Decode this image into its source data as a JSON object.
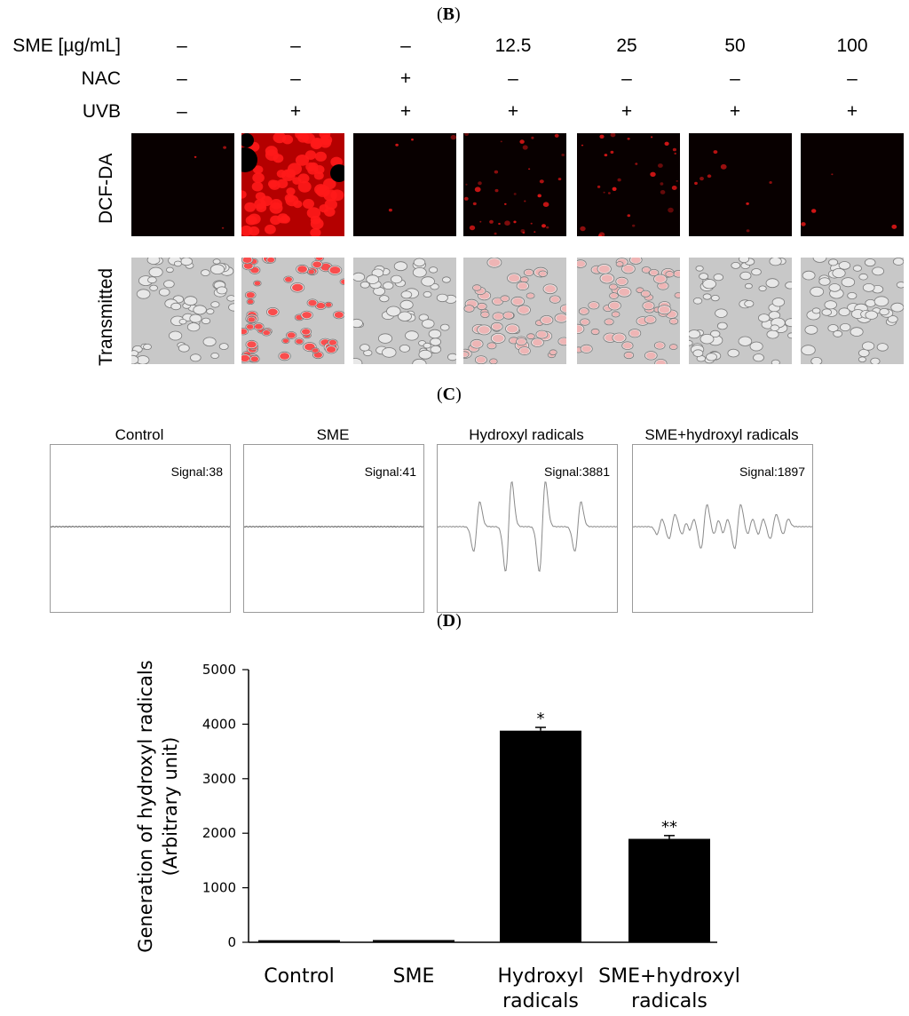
{
  "panel_b": {
    "label_open": "(",
    "label_letter": "B",
    "label_close": ")",
    "row_labels": {
      "sme": "SME [µg/mL]",
      "nac": "NAC",
      "uvb": "UVB"
    },
    "sme_values": [
      "–",
      "–",
      "–",
      "12.5",
      "25",
      "50",
      "100"
    ],
    "nac_values": [
      "–",
      "–",
      "+",
      "–",
      "–",
      "–",
      "–"
    ],
    "uvb_values": [
      "–",
      "+",
      "+",
      "+",
      "+",
      "+",
      "+"
    ],
    "image_rows": {
      "dcf": "DCF-DA",
      "transmitted": "Transmitted"
    },
    "fluorescence_intensity": [
      0.02,
      1.0,
      0.03,
      0.25,
      0.2,
      0.06,
      0.03
    ],
    "colors": {
      "fluorescence": "#ff1a1a",
      "transmitted": "#c8c8c8"
    }
  },
  "panel_c": {
    "label_open": "(",
    "label_letter": "C",
    "label_close": ")",
    "spectra": [
      {
        "title": "Control",
        "signal": "Signal:38"
      },
      {
        "title": "SME",
        "signal": "Signal:41"
      },
      {
        "title": "Hydroxyl radicals",
        "signal": "Signal:3881"
      },
      {
        "title": "SME+hydroxyl radicals",
        "signal": "Signal:1897"
      }
    ]
  },
  "panel_d": {
    "label_open": "(",
    "label_letter": "D",
    "label_close": ")"
  },
  "chart_data": {
    "type": "bar",
    "categories": [
      "Control",
      "SME",
      "Hydroxyl radicals",
      "SME+hydroxyl radicals"
    ],
    "category_lines": [
      [
        "Control"
      ],
      [
        "SME"
      ],
      [
        "Hydroxyl",
        "radicals"
      ],
      [
        "SME+hydroxyl",
        "radicals"
      ]
    ],
    "values": [
      38,
      41,
      3881,
      1897
    ],
    "errors": [
      0,
      0,
      60,
      60
    ],
    "annotations": [
      "",
      "",
      "*",
      "**"
    ],
    "ylabel_lines": [
      "Generation of hydroxyl radicals",
      "(Arbitrary unit)"
    ],
    "yticks": [
      0,
      1000,
      2000,
      3000,
      4000,
      5000
    ],
    "ylim": [
      0,
      5000
    ],
    "bar_color": "#000000"
  }
}
